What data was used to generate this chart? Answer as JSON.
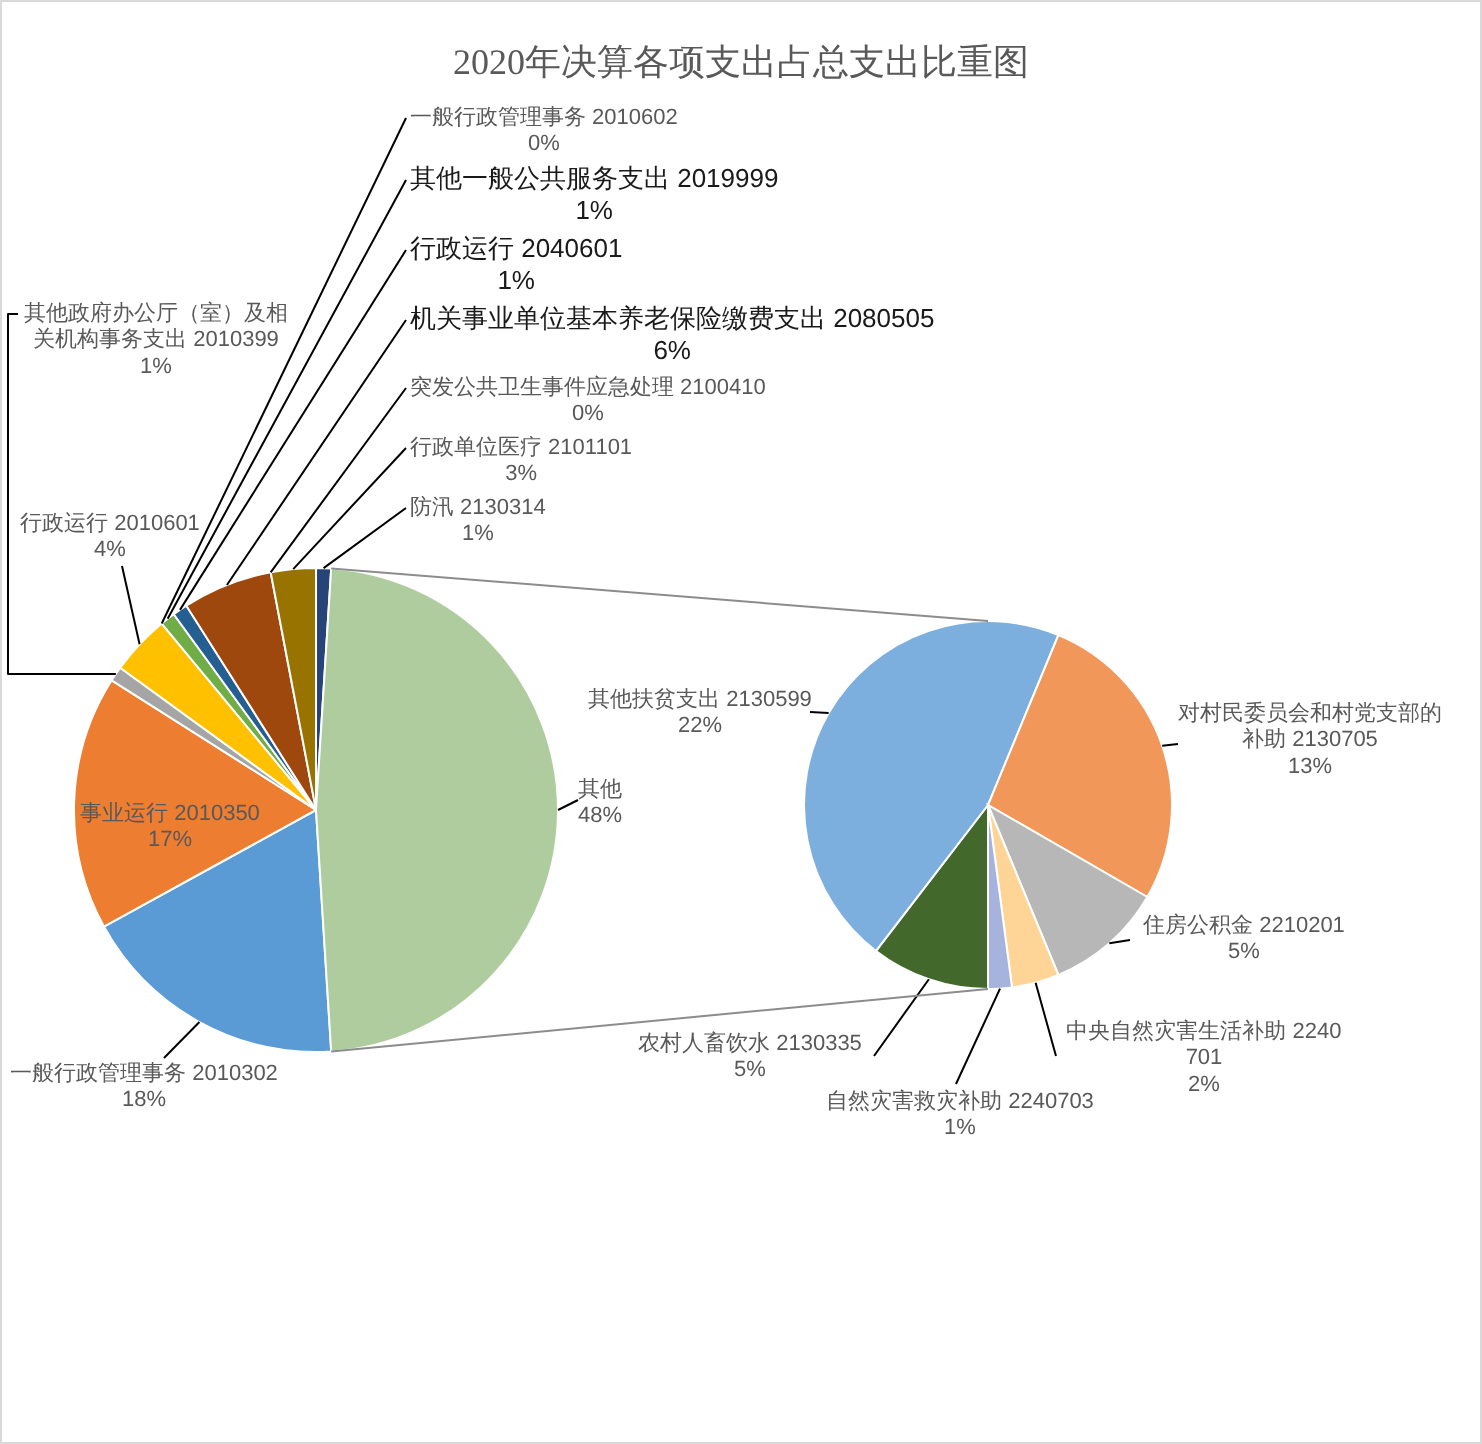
{
  "chart_data": [
    {
      "type": "pie",
      "title": "2020年决算各项支出占总支出比重图",
      "categories": [
        "一般行政管理事务 2010302",
        "事业运行 2010350",
        "其他政府办公厅（室）及相关机构事务支出 2010399",
        "行政运行 2010601",
        "一般行政管理事务 2010602",
        "其他一般公共服务支出 2019999",
        "行政运行 2040601",
        "机关事业单位基本养老保险缴费支出 2080505",
        "突发公共卫生事件应急处理 2100410",
        "行政单位医疗 2101101",
        "防汛 2130314",
        "其他"
      ],
      "values": [
        18,
        17,
        1,
        4,
        0,
        1,
        1,
        6,
        0,
        3,
        1,
        48
      ],
      "value_labels": [
        "18%",
        "17%",
        "1%",
        "4%",
        "0%",
        "1%",
        "1%",
        "6%",
        "0%",
        "3%",
        "1%",
        "48%"
      ],
      "colors": [
        "#5b9bd5",
        "#ed7d31",
        "#a5a5a5",
        "#ffc000",
        null,
        "#70ad47",
        "#255e91",
        "#9e480e",
        null,
        "#997300",
        "#264478",
        "#afcc9f"
      ]
    },
    {
      "type": "pie",
      "categories": [
        "农村人畜饮水 2130335",
        "其他扶贫支出 2130599",
        "对村民委员会和村党支部的补助 2130705",
        "住房公积金 2210201",
        "中央自然灾害生活补助 2240701",
        "自然灾害救灾补助 2240703"
      ],
      "values": [
        5,
        22,
        13,
        5,
        2,
        1
      ],
      "value_labels": [
        "5%",
        "22%",
        "13%",
        "5%",
        "2%",
        "1%"
      ],
      "colors": [
        "#43682b",
        "#7cafdd",
        "#f1975a",
        "#b7b7b7",
        "#ffd597",
        "#a5b3dd"
      ]
    }
  ]
}
